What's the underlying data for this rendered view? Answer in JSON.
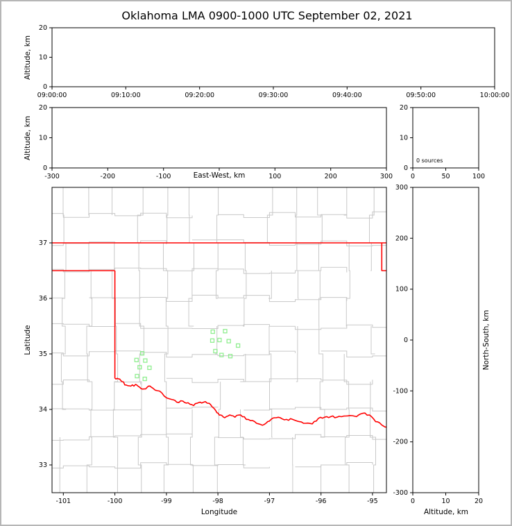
{
  "title": "Oklahoma LMA 0900-1000 UTC September 02, 2021",
  "colors": {
    "state_border": "#ff0000",
    "county_lines": "#c8c8c8",
    "station_marker": "#90ee90",
    "axes": "#000000",
    "figure_frame": "#b6b6b6",
    "background": "#ffffff"
  },
  "panels": {
    "time_height": {
      "ylabel": "Altitude, km",
      "yticks": [
        0,
        10,
        20
      ],
      "ylim": [
        0,
        20
      ],
      "xticks": [
        "09:00:00",
        "09:10:00",
        "09:20:00",
        "09:30:00",
        "09:40:00",
        "09:50:00",
        "10:00:00"
      ]
    },
    "ew_height": {
      "xlabel": "East-West, km",
      "ylabel": "Altitude, km",
      "xticks": [
        -300,
        -200,
        -100,
        0,
        100,
        200,
        300
      ],
      "xlim": [
        -300,
        300
      ],
      "yticks": [
        0,
        10,
        20
      ],
      "ylim": [
        0,
        20
      ]
    },
    "histogram": {
      "annotation": "0 sources",
      "xticks": [
        0,
        50,
        100
      ],
      "xlim": [
        0,
        100
      ],
      "yticks": [
        0,
        10,
        20
      ],
      "ylim": [
        0,
        20
      ]
    },
    "map": {
      "xlabel": "Longitude",
      "ylabel": "Latitude",
      "xticks": [
        -101,
        -100,
        -99,
        -98,
        -97,
        -96,
        -95
      ],
      "yticks": [
        33,
        34,
        35,
        36,
        37
      ],
      "xlim": [
        -101.22,
        -94.73
      ],
      "ylim": [
        32.5,
        38.0
      ]
    },
    "ns_height": {
      "xlabel": "Altitude, km",
      "ylabel": "North-South, km",
      "xticks": [
        0,
        10,
        20
      ],
      "xlim": [
        0,
        20
      ],
      "yticks": [
        300,
        200,
        100,
        0,
        -100,
        -200,
        -300
      ],
      "ylim": [
        -300,
        300
      ]
    }
  },
  "chart_data": {
    "type": "scatter",
    "title": "Oklahoma LMA 0900-1000 UTC September 02, 2021",
    "time_range_utc": [
      "09:00:00",
      "10:00:00"
    ],
    "altitude_km_range": [
      0,
      20
    ],
    "east_west_km_range": [
      -300,
      300
    ],
    "north_south_km_range": [
      -300,
      300
    ],
    "map_lon_range": [
      -101.22,
      -94.73
    ],
    "map_lat_range": [
      32.5,
      38.0
    ],
    "source_count_label": "0 sources",
    "lightning_sources": [],
    "county_grid_spacing_deg": 0.5,
    "lma_stations_lon_lat": [
      [
        -98.1,
        35.4
      ],
      [
        -97.86,
        35.41
      ],
      [
        -98.11,
        35.24
      ],
      [
        -97.97,
        35.25
      ],
      [
        -97.79,
        35.23
      ],
      [
        -97.61,
        35.15
      ],
      [
        -98.05,
        35.05
      ],
      [
        -97.93,
        34.98
      ],
      [
        -97.76,
        34.96
      ],
      [
        -99.47,
        35.01
      ],
      [
        -99.58,
        34.89
      ],
      [
        -99.41,
        34.88
      ],
      [
        -99.52,
        34.76
      ],
      [
        -99.33,
        34.75
      ],
      [
        -99.57,
        34.6
      ],
      [
        -99.42,
        34.55
      ]
    ],
    "state_border_segments": [
      {
        "name": "northern-border-37N",
        "wiggly": false,
        "points": [
          [
            -101.22,
            37.0
          ],
          [
            -94.73,
            37.0
          ]
        ]
      },
      {
        "name": "panhandle-south-border",
        "wiggly": false,
        "points": [
          [
            -101.22,
            36.5
          ],
          [
            -100.0,
            36.5
          ]
        ]
      },
      {
        "name": "western-border-100W",
        "wiggly": false,
        "points": [
          [
            -100.0,
            36.5
          ],
          [
            -100.0,
            34.56
          ]
        ]
      },
      {
        "name": "northeast-missouri-border",
        "wiggly": false,
        "points": [
          [
            -94.82,
            37.0
          ],
          [
            -94.82,
            36.5
          ],
          [
            -94.73,
            36.5
          ]
        ]
      },
      {
        "name": "red-river-southern-border",
        "wiggly": true,
        "points": [
          [
            -100.0,
            34.56
          ],
          [
            -99.93,
            34.55
          ],
          [
            -99.86,
            34.5
          ],
          [
            -99.78,
            34.44
          ],
          [
            -99.69,
            34.42
          ],
          [
            -99.6,
            34.45
          ],
          [
            -99.52,
            34.4
          ],
          [
            -99.43,
            34.37
          ],
          [
            -99.35,
            34.42
          ],
          [
            -99.26,
            34.38
          ],
          [
            -99.13,
            34.33
          ],
          [
            -99.0,
            34.21
          ],
          [
            -98.9,
            34.18
          ],
          [
            -98.8,
            34.13
          ],
          [
            -98.68,
            34.15
          ],
          [
            -98.58,
            34.12
          ],
          [
            -98.47,
            34.07
          ],
          [
            -98.38,
            34.12
          ],
          [
            -98.28,
            34.13
          ],
          [
            -98.17,
            34.11
          ],
          [
            -98.09,
            34.03
          ],
          [
            -98.02,
            33.94
          ],
          [
            -97.95,
            33.9
          ],
          [
            -97.87,
            33.85
          ],
          [
            -97.77,
            33.9
          ],
          [
            -97.67,
            33.86
          ],
          [
            -97.56,
            33.9
          ],
          [
            -97.45,
            33.82
          ],
          [
            -97.33,
            33.8
          ],
          [
            -97.21,
            33.74
          ],
          [
            -97.1,
            33.73
          ],
          [
            -97.0,
            33.79
          ],
          [
            -96.9,
            33.85
          ],
          [
            -96.79,
            33.85
          ],
          [
            -96.67,
            33.82
          ],
          [
            -96.55,
            33.82
          ],
          [
            -96.42,
            33.78
          ],
          [
            -96.3,
            33.75
          ],
          [
            -96.17,
            33.74
          ],
          [
            -96.05,
            33.84
          ],
          [
            -95.93,
            33.86
          ],
          [
            -95.81,
            33.87
          ],
          [
            -95.69,
            33.86
          ],
          [
            -95.56,
            33.88
          ],
          [
            -95.44,
            33.89
          ],
          [
            -95.31,
            33.87
          ],
          [
            -95.19,
            33.93
          ],
          [
            -95.06,
            33.9
          ],
          [
            -94.94,
            33.78
          ],
          [
            -94.82,
            33.72
          ],
          [
            -94.73,
            33.68
          ]
        ]
      }
    ]
  }
}
